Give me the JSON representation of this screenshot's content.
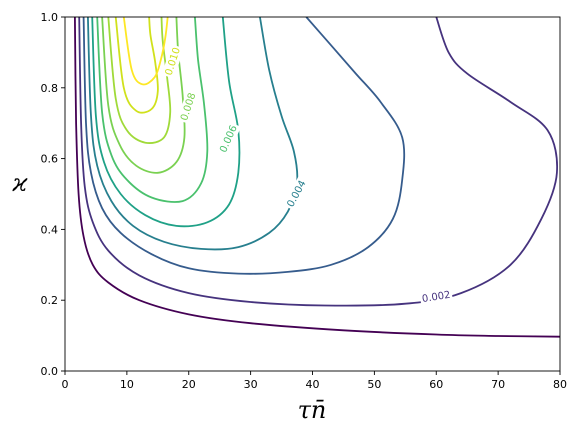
{
  "chart_data": {
    "type": "contour",
    "title": "",
    "xlabel": "τn̄",
    "ylabel": "ϰ",
    "xlim": [
      0,
      80
    ],
    "ylim": [
      0.0,
      1.0
    ],
    "x_ticks": [
      "0",
      "10",
      "20",
      "30",
      "40",
      "50",
      "60",
      "70",
      "80"
    ],
    "y_ticks": [
      "0.0",
      "0.2",
      "0.4",
      "0.6",
      "0.8",
      "1.0"
    ],
    "grid": false,
    "colormap": "viridis",
    "contours": [
      {
        "level": 0.001,
        "color": "#440154",
        "points": [
          [
            1.6,
            1.0
          ],
          [
            1.8,
            0.7
          ],
          [
            2.2,
            0.5
          ],
          [
            3.0,
            0.38
          ],
          [
            4.5,
            0.3
          ],
          [
            7,
            0.25
          ],
          [
            12,
            0.2
          ],
          [
            20,
            0.16
          ],
          [
            30,
            0.135
          ],
          [
            45,
            0.115
          ],
          [
            60,
            0.103
          ],
          [
            70,
            0.099
          ],
          [
            80,
            0.097
          ]
        ]
      },
      {
        "level": 0.002,
        "color": "#46337e",
        "points": [
          [
            2.3,
            1.0
          ],
          [
            2.6,
            0.7
          ],
          [
            3.2,
            0.52
          ],
          [
            4.5,
            0.42
          ],
          [
            7,
            0.34
          ],
          [
            12,
            0.27
          ],
          [
            20,
            0.22
          ],
          [
            30,
            0.195
          ],
          [
            42,
            0.185
          ],
          [
            55,
            0.19
          ],
          [
            64,
            0.22
          ],
          [
            72,
            0.3
          ],
          [
            77,
            0.43
          ],
          [
            79.5,
            0.56
          ],
          [
            78,
            0.68
          ],
          [
            72,
            0.76
          ],
          [
            65,
            0.84
          ],
          [
            62,
            0.9
          ],
          [
            60,
            1.0
          ]
        ]
      },
      {
        "level": 0.003,
        "color": "#365c8d",
        "points": [
          [
            3.0,
            1.0
          ],
          [
            3.4,
            0.7
          ],
          [
            4.2,
            0.56
          ],
          [
            6,
            0.46
          ],
          [
            9,
            0.39
          ],
          [
            14,
            0.33
          ],
          [
            20,
            0.29
          ],
          [
            28,
            0.275
          ],
          [
            36,
            0.28
          ],
          [
            43,
            0.3
          ],
          [
            49,
            0.35
          ],
          [
            53,
            0.43
          ],
          [
            54.5,
            0.54
          ],
          [
            54.5,
            0.66
          ],
          [
            51,
            0.76
          ],
          [
            47,
            0.84
          ],
          [
            43,
            0.92
          ],
          [
            39,
            1.0
          ]
        ]
      },
      {
        "level": 0.004,
        "color": "#277f8e",
        "points": [
          [
            3.7,
            1.0
          ],
          [
            4.2,
            0.72
          ],
          [
            5.2,
            0.58
          ],
          [
            7.5,
            0.48
          ],
          [
            11,
            0.41
          ],
          [
            16,
            0.365
          ],
          [
            22,
            0.345
          ],
          [
            28,
            0.35
          ],
          [
            33,
            0.39
          ],
          [
            36,
            0.45
          ],
          [
            37.5,
            0.53
          ],
          [
            37,
            0.62
          ],
          [
            35,
            0.72
          ],
          [
            33,
            0.85
          ],
          [
            31.5,
            1.0
          ]
        ]
      },
      {
        "level": 0.005,
        "color": "#1fa187",
        "points": [
          [
            4.4,
            1.0
          ],
          [
            5.0,
            0.72
          ],
          [
            6.3,
            0.59
          ],
          [
            9,
            0.5
          ],
          [
            13,
            0.44
          ],
          [
            18,
            0.41
          ],
          [
            23,
            0.42
          ],
          [
            26.5,
            0.47
          ],
          [
            28,
            0.56
          ],
          [
            28,
            0.68
          ],
          [
            26.5,
            0.82
          ],
          [
            25.5,
            1.0
          ]
        ]
      },
      {
        "level": 0.006,
        "color": "#4ac16d",
        "points": [
          [
            5.2,
            1.0
          ],
          [
            6.0,
            0.73
          ],
          [
            7.5,
            0.61
          ],
          [
            10,
            0.54
          ],
          [
            14,
            0.49
          ],
          [
            19,
            0.48
          ],
          [
            22,
            0.53
          ],
          [
            23,
            0.62
          ],
          [
            22.5,
            0.75
          ],
          [
            21.5,
            0.88
          ],
          [
            21,
            1.0
          ]
        ]
      },
      {
        "level": 0.007,
        "color": "#7ad151",
        "points": [
          [
            6.0,
            1.0
          ],
          [
            7.0,
            0.75
          ],
          [
            8.8,
            0.64
          ],
          [
            11.5,
            0.58
          ],
          [
            15,
            0.56
          ],
          [
            18,
            0.59
          ],
          [
            19.3,
            0.66
          ],
          [
            19,
            0.78
          ],
          [
            18.3,
            0.9
          ],
          [
            18,
            1.0
          ]
        ]
      },
      {
        "level": 0.008,
        "color": "#a0da39",
        "points": [
          [
            7.0,
            1.0
          ],
          [
            8.2,
            0.77
          ],
          [
            10,
            0.68
          ],
          [
            13,
            0.645
          ],
          [
            16,
            0.66
          ],
          [
            17,
            0.73
          ],
          [
            16.5,
            0.83
          ],
          [
            15.8,
            0.93
          ],
          [
            15.6,
            1.0
          ]
        ]
      },
      {
        "level": 0.009,
        "color": "#d0e11c",
        "points": [
          [
            8.2,
            1.0
          ],
          [
            9.5,
            0.8
          ],
          [
            11.5,
            0.735
          ],
          [
            14,
            0.74
          ],
          [
            15,
            0.79
          ],
          [
            14.6,
            0.87
          ],
          [
            13.8,
            0.95
          ],
          [
            13.6,
            1.0
          ]
        ]
      },
      {
        "level": 0.01,
        "color": "#fde725",
        "points": [
          [
            9.5,
            1.0
          ],
          [
            10.8,
            0.85
          ],
          [
            12.5,
            0.81
          ],
          [
            14.5,
            0.83
          ],
          [
            15.5,
            0.88
          ],
          [
            16.2,
            0.94
          ],
          [
            16.6,
            1.0
          ]
        ]
      }
    ],
    "contour_labels": [
      {
        "text": "0.002",
        "x": 60.0,
        "y": 0.208,
        "angle": -9,
        "color": "#46337e"
      },
      {
        "text": "0.004",
        "x": 37.5,
        "y": 0.5,
        "angle": -62,
        "color": "#277f8e"
      },
      {
        "text": "0.006",
        "x": 26.5,
        "y": 0.655,
        "angle": -66,
        "color": "#4ac16d"
      },
      {
        "text": "0.008",
        "x": 20.0,
        "y": 0.746,
        "angle": -72,
        "color": "#7ad151"
      },
      {
        "text": "0.010",
        "x": 17.5,
        "y": 0.874,
        "angle": -72,
        "color": "#d0e11c"
      }
    ]
  }
}
